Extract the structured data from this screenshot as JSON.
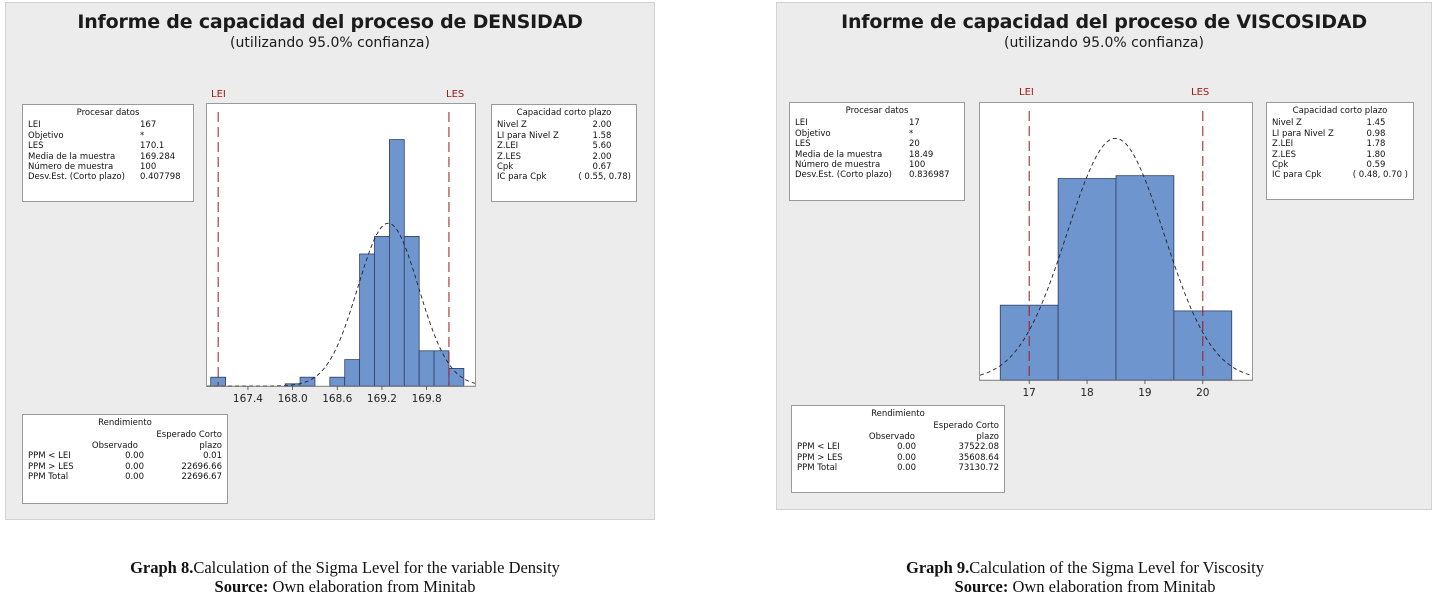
{
  "colors": {
    "bar": "#6f95cf",
    "bar_stroke": "#2d3f63",
    "limit": "#a01818",
    "curve": "#222222"
  },
  "left": {
    "title": "Informe de capacidad del proceso de DENSIDAD",
    "subtitle": "(utilizando 95.0% confianza)",
    "lei_label": "LEI",
    "les_label": "LES",
    "process": {
      "title": "Procesar datos",
      "rows": [
        {
          "k": "LEI",
          "v": "167"
        },
        {
          "k": "Objetivo",
          "v": "*"
        },
        {
          "k": "LES",
          "v": "170.1"
        },
        {
          "k": "Media de la muestra",
          "v": "169.284"
        },
        {
          "k": "Número de muestra",
          "v": "100"
        },
        {
          "k": "Desv.Est. (Corto plazo)",
          "v": "0.407798"
        }
      ]
    },
    "capability": {
      "title": "Capacidad corto plazo",
      "rows": [
        {
          "k": "Nivel Z",
          "v": "2.00"
        },
        {
          "k": "LI para Nivel Z",
          "v": "1.58"
        },
        {
          "k": "Z.LEI",
          "v": "5.60"
        },
        {
          "k": "Z.LES",
          "v": "2.00"
        },
        {
          "k": "Cpk",
          "v": "0.67"
        },
        {
          "k": "IC para Cpk",
          "v": "( 0.55, 0.78)"
        }
      ]
    },
    "yield": {
      "title": "Rendimiento",
      "col_observed": "Observado",
      "col_expected_1": "Esperado Corto",
      "col_expected_2": "plazo",
      "rows": [
        {
          "k": "PPM < LEI",
          "obs": "0.00",
          "exp": "0.01"
        },
        {
          "k": "PPM > LES",
          "obs": "0.00",
          "exp": "22696.66"
        },
        {
          "k": "PPM Total",
          "obs": "0.00",
          "exp": "22696.67"
        }
      ]
    }
  },
  "right": {
    "title": "Informe de capacidad del proceso de VISCOSIDAD",
    "subtitle": "(utilizando 95.0% confianza)",
    "lei_label": "LEI",
    "les_label": "LES",
    "process": {
      "title": "Procesar datos",
      "rows": [
        {
          "k": "LEI",
          "v": "17"
        },
        {
          "k": "Objetivo",
          "v": "*"
        },
        {
          "k": "LES",
          "v": "20"
        },
        {
          "k": "Media de la muestra",
          "v": "18.49"
        },
        {
          "k": "Número de muestra",
          "v": "100"
        },
        {
          "k": "Desv.Est. (Corto plazo)",
          "v": "0.836987"
        }
      ]
    },
    "capability": {
      "title": "Capacidad corto plazo",
      "rows": [
        {
          "k": "Nivel Z",
          "v": "1.45"
        },
        {
          "k": "LI para Nivel Z",
          "v": "0.98"
        },
        {
          "k": "Z.LEI",
          "v": "1.78"
        },
        {
          "k": "Z.LES",
          "v": "1.80"
        },
        {
          "k": "Cpk",
          "v": "0.59"
        },
        {
          "k": "IC para Cpk",
          "v": "( 0.48, 0.70 )"
        }
      ]
    },
    "yield": {
      "title": "Rendimiento",
      "col_observed": "Observado",
      "col_expected_1": "Esperado Corto",
      "col_expected_2": "plazo",
      "rows": [
        {
          "k": "PPM < LEI",
          "obs": "0.00",
          "exp": "37522.08"
        },
        {
          "k": "PPM > LES",
          "obs": "0.00",
          "exp": "35608.64"
        },
        {
          "k": "PPM Total",
          "obs": "0.00",
          "exp": "73130.72"
        }
      ]
    }
  },
  "captions": {
    "left_bold": "Graph 8.",
    "left_text": "Calculation of the Sigma Level for the variable Density",
    "left_src_bold": "Source:",
    "left_src_text": " Own elaboration from Minitab",
    "right_bold": "Graph 9.",
    "right_text": "Calculation of the Sigma Level for Viscosity",
    "right_src_bold": "Source:",
    "right_src_text": " Own elaboration from Minitab"
  },
  "chart_data": [
    {
      "type": "bar",
      "bin_edges": [
        166.9,
        167.1,
        167.3,
        167.5,
        167.7,
        167.9,
        168.1,
        168.3,
        168.5,
        168.7,
        168.9,
        169.1,
        169.3,
        169.5,
        169.7,
        169.9,
        170.1,
        170.3
      ],
      "values": [
        2,
        0,
        0,
        0,
        0,
        0.5,
        2,
        0,
        2,
        6,
        30,
        34,
        56,
        34,
        8,
        8,
        4
      ],
      "x_ticks": [
        "167.4",
        "168.0",
        "168.6",
        "169.2",
        "169.8"
      ],
      "x_tick_values": [
        167.4,
        168.0,
        168.6,
        169.2,
        169.8
      ],
      "xlim": [
        166.85,
        170.45
      ],
      "ylim": [
        0,
        60
      ],
      "lsl": 167,
      "usl": 170.1,
      "normal_mean": 169.284,
      "normal_sd": 0.407798,
      "curve_peak": 37
    },
    {
      "type": "bar",
      "bin_edges": [
        16.5,
        17.5,
        18.5,
        19.5,
        20.5
      ],
      "values": [
        13,
        35,
        35.5,
        12
      ],
      "x_ticks": [
        "17",
        "18",
        "19",
        "20"
      ],
      "x_tick_values": [
        17,
        18,
        19,
        20
      ],
      "xlim": [
        16.15,
        20.85
      ],
      "ylim": [
        0,
        45
      ],
      "lsl": 17,
      "usl": 20,
      "normal_mean": 18.49,
      "normal_sd": 0.836987,
      "curve_peak": 42
    }
  ]
}
